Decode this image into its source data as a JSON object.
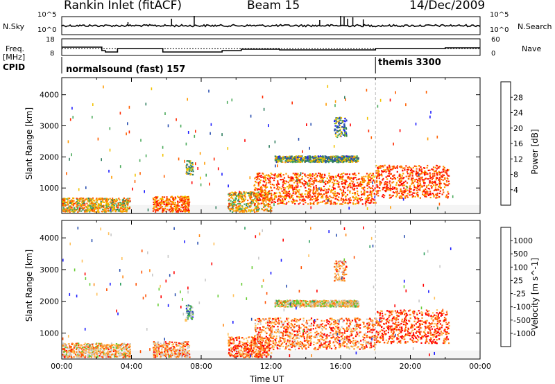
{
  "header": {
    "radar_title": "Rankin Inlet (fitACF)",
    "beam_label": "Beam 15",
    "date_label": "14/Dec/2009"
  },
  "summary_panel": {
    "left_labels": {
      "nsky": "N.Sky",
      "freq": "Freq.",
      "freq_unit": "[MHz]",
      "cpid": "CPID"
    },
    "right_labels": {
      "nsearch": "N.Search",
      "nave": "Nave"
    },
    "left_ticks": {
      "noise_top": "10^5",
      "noise_bottom": "10^0",
      "freq_top": "18",
      "freq_bottom": "8"
    },
    "right_ticks": {
      "noise_top": "10^5",
      "noise_bottom": "10^0",
      "nave_top": "60",
      "nave_bottom": "0"
    },
    "cpid_segments": [
      {
        "label": "normalsound (fast) 157",
        "start_hour": 0
      },
      {
        "label": "themis 3300",
        "start_hour": 18
      }
    ]
  },
  "colors": {
    "power_scale": [
      "#1a1aff",
      "#2a4fb0",
      "#2e7d5e",
      "#4aaa5a",
      "#f2c200",
      "#ff9a00",
      "#ff6000",
      "#ff2a00",
      "#ff0000"
    ],
    "velocity_scale": [
      "#ff0000",
      "#ff5000",
      "#ff8a1a",
      "#ffc05a",
      "#c8c8c8",
      "#66cc33",
      "#2e9e5e",
      "#2a4fb0",
      "#1a1aff"
    ],
    "ground_scatter": "#c0c0c0"
  },
  "chart_data": [
    {
      "type": "heatmap",
      "panel": "power",
      "ylabel": "Slant Range [km]",
      "xlabel": "",
      "ylim": [
        180,
        4550
      ],
      "xlim": [
        0,
        24
      ],
      "y_ticks": [
        "1000",
        "2000",
        "3000",
        "4000"
      ],
      "colorbar_label": "Power [dB]",
      "colorbar_ticks": [
        "4",
        "8",
        "12",
        "16",
        "20",
        "24",
        "28"
      ],
      "colorbar_range": [
        0,
        32
      ],
      "clusters": [
        {
          "t0": 0.0,
          "t1": 3.9,
          "r0": 250,
          "r1": 700,
          "level": 0.55
        },
        {
          "t0": 5.2,
          "t1": 7.3,
          "r0": 250,
          "r1": 750,
          "level": 0.7
        },
        {
          "t0": 7.1,
          "t1": 7.5,
          "r0": 1450,
          "r1": 1900,
          "level": 0.35
        },
        {
          "t0": 9.5,
          "t1": 12.0,
          "r0": 250,
          "r1": 900,
          "level": 0.55
        },
        {
          "t0": 11.0,
          "t1": 18.0,
          "r0": 500,
          "r1": 1500,
          "level": 0.75
        },
        {
          "t0": 12.2,
          "t1": 17.0,
          "r0": 1850,
          "r1": 2050,
          "level": 0.35
        },
        {
          "t0": 18.0,
          "t1": 22.2,
          "r0": 700,
          "r1": 1750,
          "level": 0.8
        },
        {
          "t0": 15.6,
          "t1": 16.3,
          "r0": 2650,
          "r1": 3300,
          "level": 0.3
        }
      ]
    },
    {
      "type": "heatmap",
      "panel": "velocity",
      "ylabel": "Slant Range [km]",
      "xlabel": "Time UT",
      "ylim": [
        180,
        4550
      ],
      "xlim": [
        0,
        24
      ],
      "x_ticks": [
        "00:00",
        "04:00",
        "08:00",
        "12:00",
        "16:00",
        "20:00",
        "00:00"
      ],
      "y_ticks": [
        "1000",
        "2000",
        "3000",
        "4000"
      ],
      "colorbar_label": "Velocity [m s^-1]",
      "colorbar_ticks": [
        "1000",
        "500",
        "100",
        "25",
        "-25",
        "-100",
        "-500",
        "-1000"
      ],
      "clusters": [
        {
          "t0": 0.0,
          "t1": 3.9,
          "r0": 250,
          "r1": 700,
          "level": 0.35
        },
        {
          "t0": 5.2,
          "t1": 7.3,
          "r0": 250,
          "r1": 750,
          "level": 0.3
        },
        {
          "t0": 7.1,
          "t1": 7.5,
          "r0": 1450,
          "r1": 1900,
          "level": 0.7
        },
        {
          "t0": 9.5,
          "t1": 12.0,
          "r0": 250,
          "r1": 900,
          "level": 0.2
        },
        {
          "t0": 11.0,
          "t1": 18.0,
          "r0": 500,
          "r1": 1500,
          "level": 0.25
        },
        {
          "t0": 12.2,
          "t1": 17.0,
          "r0": 1850,
          "r1": 2050,
          "level": 0.45
        },
        {
          "t0": 18.0,
          "t1": 22.2,
          "r0": 700,
          "r1": 1750,
          "level": 0.15
        },
        {
          "t0": 15.6,
          "t1": 16.3,
          "r0": 2650,
          "r1": 3300,
          "level": 0.3
        }
      ]
    }
  ]
}
